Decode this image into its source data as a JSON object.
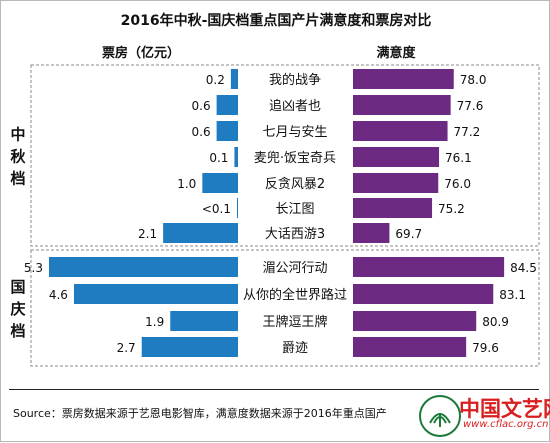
{
  "chart_data": {
    "type": "bar",
    "title": "2016年中秋-国庆档重点国产片满意度和票房对比",
    "left_header": "票房（亿元）",
    "right_header": "满意度",
    "groups": [
      {
        "label": "中秋档",
        "start": 0,
        "end": 6
      },
      {
        "label": "国庆档",
        "start": 7,
        "end": 10
      }
    ],
    "categories": [
      "我的战争",
      "追凶者也",
      "七月与安生",
      "麦兜·饭宝奇兵",
      "反贪风暴2",
      "长江图",
      "大话西游3",
      "湄公河行动",
      "从你的全世界路过",
      "王牌逗王牌",
      "爵迹"
    ],
    "series": [
      {
        "name": "票房（亿元）",
        "values": [
          0.2,
          0.6,
          0.6,
          0.1,
          1.0,
          0.02,
          2.1,
          5.3,
          4.6,
          1.9,
          2.7
        ],
        "labels": [
          "0.2",
          "0.6",
          "0.6",
          "0.1",
          "1.0",
          "<0.1",
          "2.1",
          "5.3",
          "4.6",
          "1.9",
          "2.7"
        ],
        "color": "#1f7cc0"
      },
      {
        "name": "满意度",
        "values": [
          78.0,
          77.6,
          77.2,
          76.1,
          76.0,
          75.2,
          69.7,
          84.5,
          83.1,
          80.9,
          79.6
        ],
        "labels": [
          "78.0",
          "77.6",
          "77.2",
          "76.1",
          "76.0",
          "75.2",
          "69.7",
          "84.5",
          "83.1",
          "80.9",
          "79.6"
        ],
        "color": "#6d2a82"
      }
    ],
    "box_office_lim": [
      0,
      5.3
    ],
    "satisfaction_lim": [
      65,
      85
    ]
  },
  "source": "Source：票房数据来源于艺恩电影智库，满意度数据来源于2016年重点国产",
  "watermark": {
    "text": "中国文艺网",
    "url": "www.cflac.org.cn"
  }
}
